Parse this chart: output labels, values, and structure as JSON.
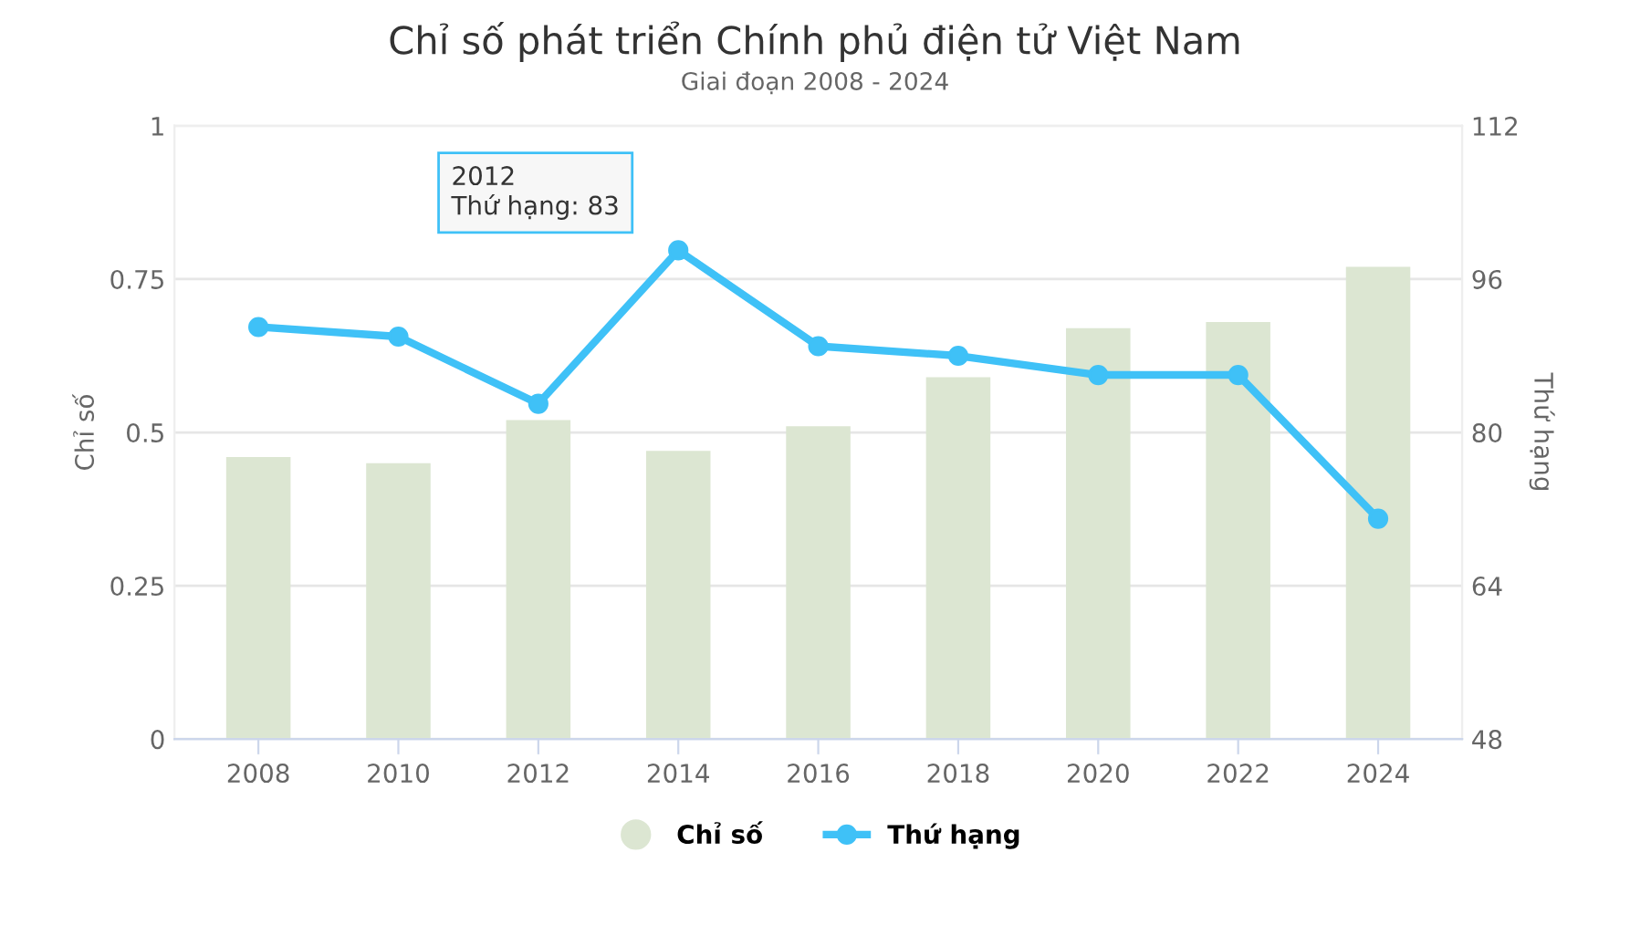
{
  "chart_data": {
    "type": "bar",
    "title": "Chỉ số phát triển Chính phủ điện tử Việt Nam",
    "subtitle": "Giai đoạn 2008 - 2024",
    "ylabel": "Chỉ số",
    "y2label": "Thứ hạng",
    "categories": [
      "2008",
      "2010",
      "2012",
      "2014",
      "2016",
      "2018",
      "2020",
      "2022",
      "2024"
    ],
    "series": [
      {
        "name": "Chỉ số",
        "color": "#dce6d2",
        "values": [
          0.46,
          0.45,
          0.52,
          0.47,
          0.51,
          0.59,
          0.67,
          0.68,
          0.77
        ]
      },
      {
        "name": "Thứ hạng",
        "type": "line",
        "axis": "y2",
        "color": "#3fc1f7",
        "marker": "circle",
        "line_style": "solid",
        "values": [
          91,
          90,
          83,
          99,
          89,
          88,
          86,
          86,
          71
        ]
      }
    ],
    "ylim": [
      0,
      1
    ],
    "yticks": [
      0,
      0.25,
      0.5,
      0.75,
      1
    ],
    "y2lim": [
      48,
      112
    ],
    "y2ticks": [
      48,
      64,
      80,
      96,
      112
    ],
    "annotations": [
      "2012\nThứ hạng: 83"
    ],
    "grid": "y",
    "legend": "bottom"
  }
}
